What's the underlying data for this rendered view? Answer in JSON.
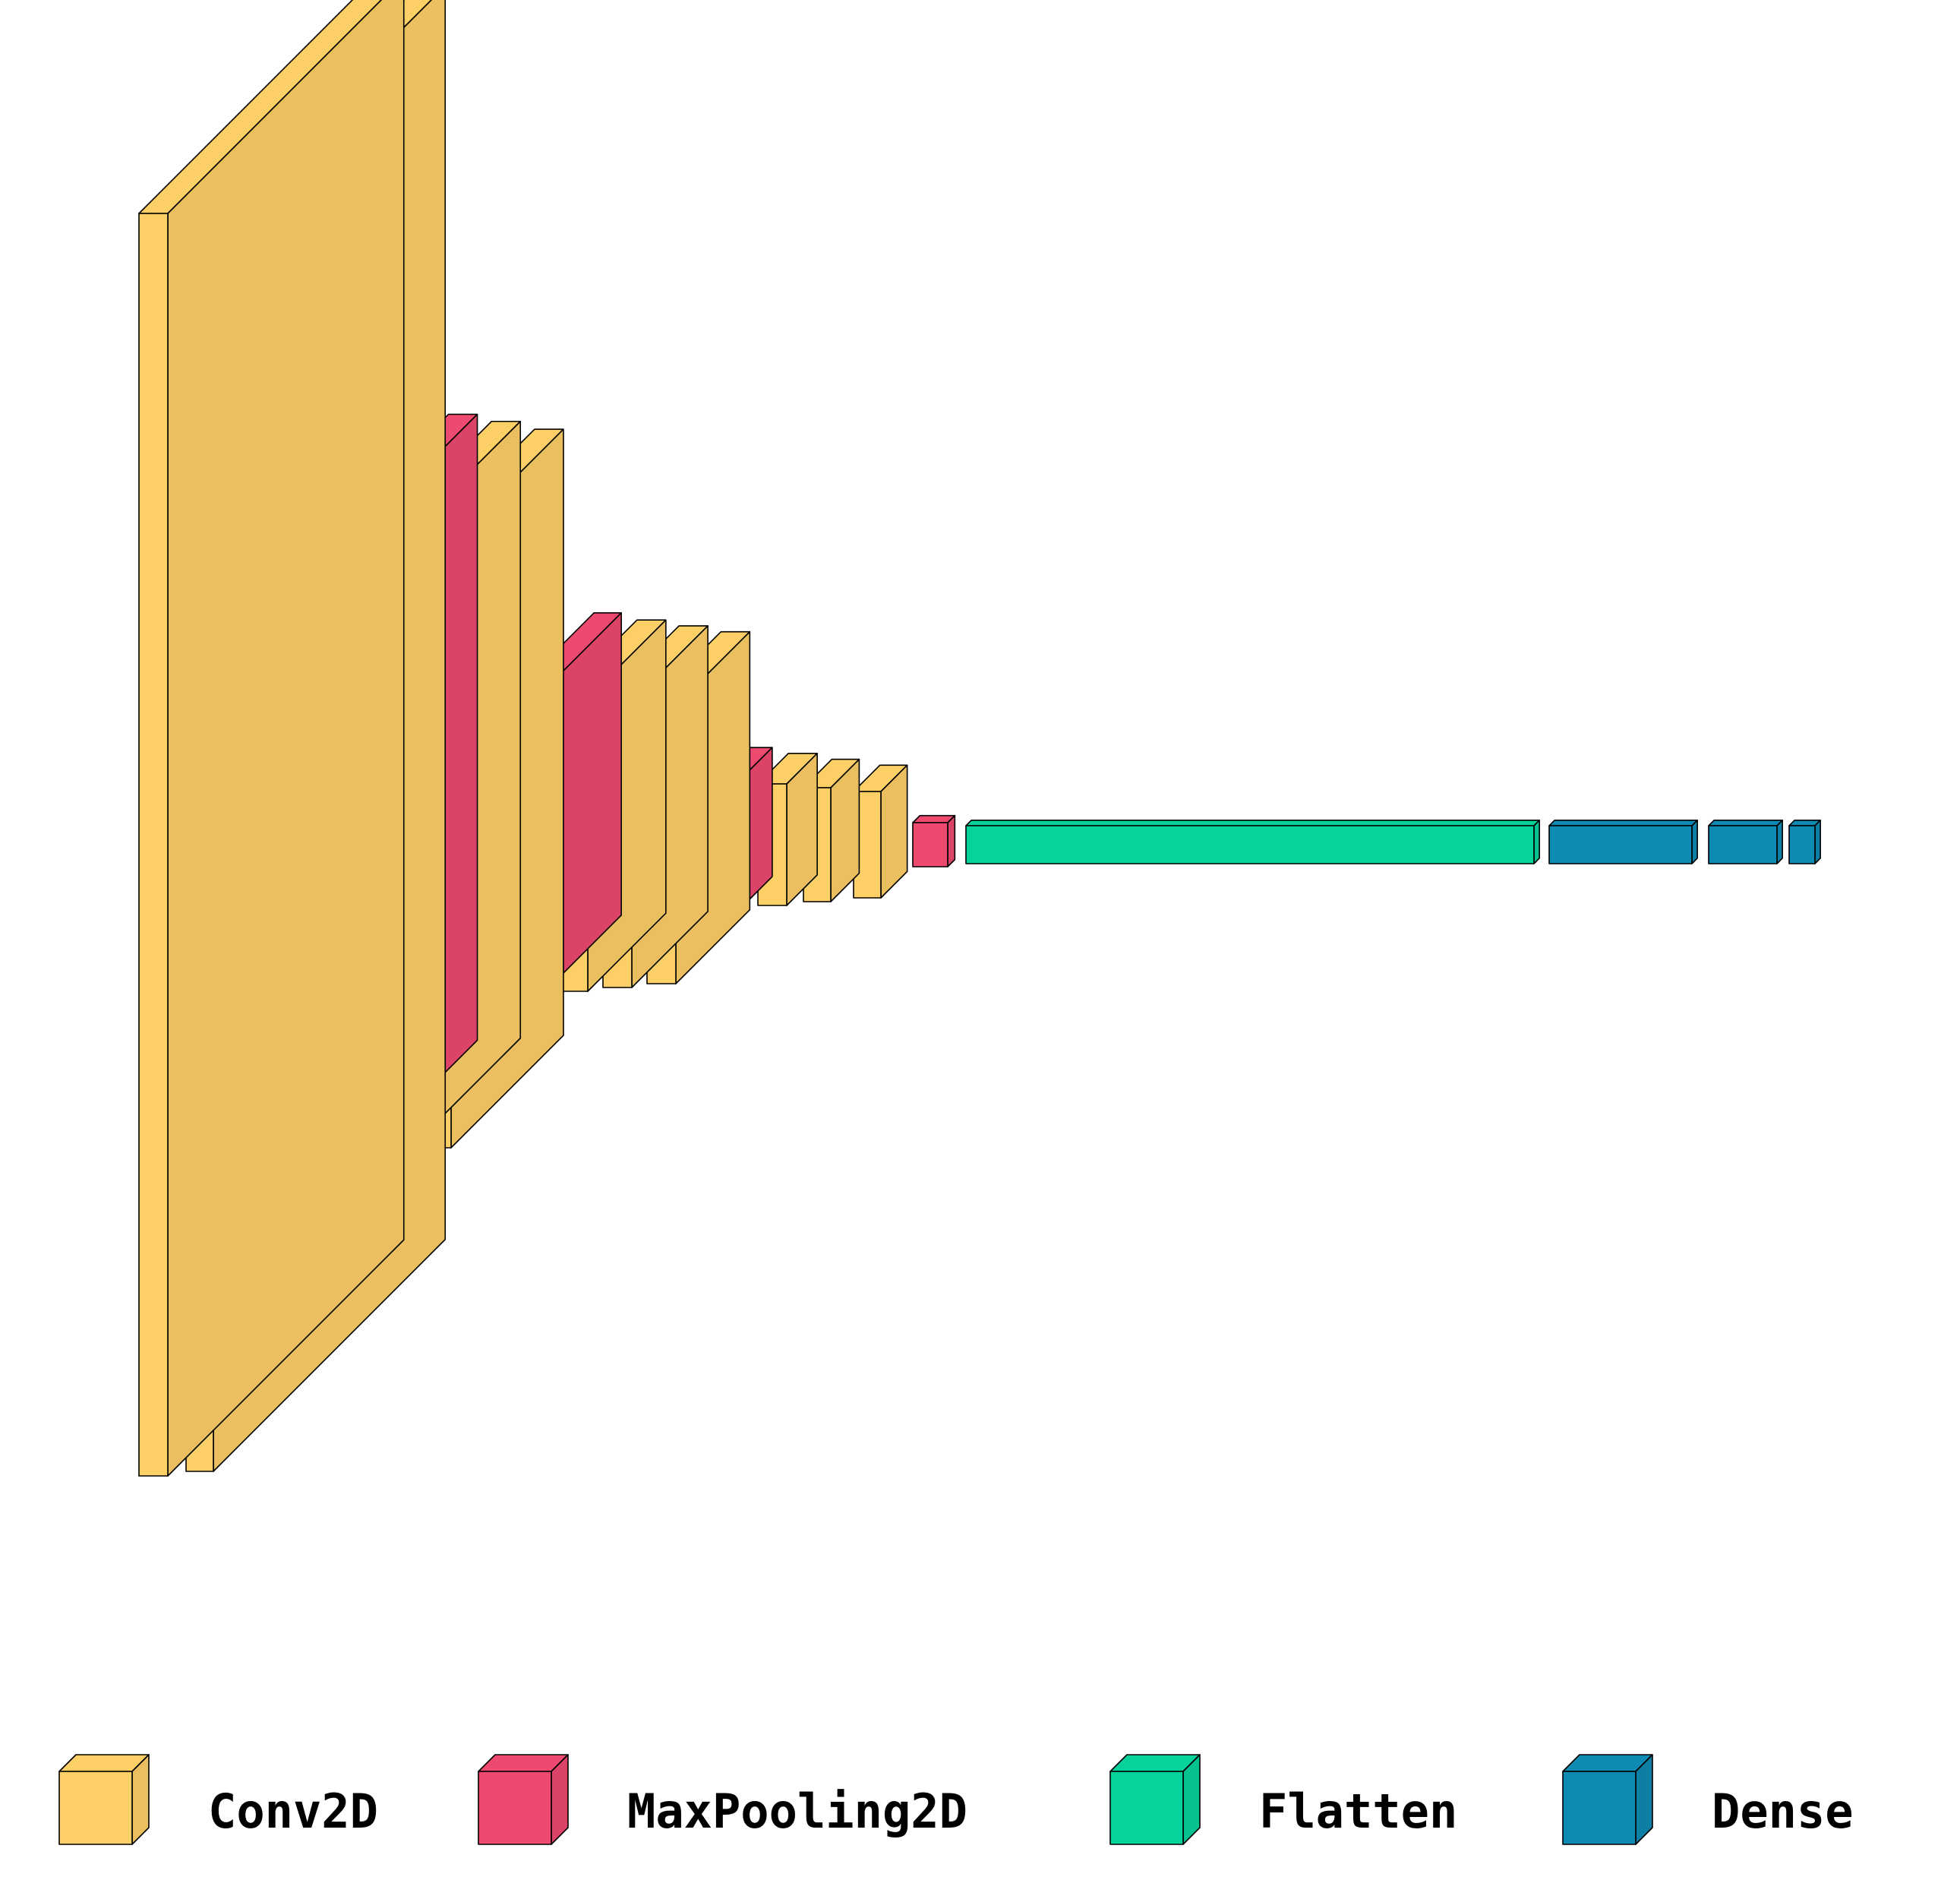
{
  "colors": {
    "conv2d": "#fdd067",
    "maxpooling2d": "#ee4a6f",
    "flatten": "#06d29c",
    "dense": "#0f8ab2",
    "outline": "#000000"
  },
  "layers": [
    {
      "type": "Conv2D",
      "color_key": "conv2d"
    },
    {
      "type": "Conv2D",
      "color_key": "conv2d"
    },
    {
      "type": "MaxPooling2D",
      "color_key": "maxpooling2d"
    },
    {
      "type": "Conv2D",
      "color_key": "conv2d"
    },
    {
      "type": "Conv2D",
      "color_key": "conv2d"
    },
    {
      "type": "MaxPooling2D",
      "color_key": "maxpooling2d"
    },
    {
      "type": "Conv2D",
      "color_key": "conv2d"
    },
    {
      "type": "Conv2D",
      "color_key": "conv2d"
    },
    {
      "type": "Conv2D",
      "color_key": "conv2d"
    },
    {
      "type": "MaxPooling2D",
      "color_key": "maxpooling2d"
    },
    {
      "type": "Conv2D",
      "color_key": "conv2d"
    },
    {
      "type": "Conv2D",
      "color_key": "conv2d"
    },
    {
      "type": "Conv2D",
      "color_key": "conv2d"
    },
    {
      "type": "MaxPooling2D",
      "color_key": "maxpooling2d"
    },
    {
      "type": "Flatten",
      "color_key": "flatten"
    },
    {
      "type": "Dense",
      "color_key": "dense"
    },
    {
      "type": "Dense",
      "color_key": "dense"
    },
    {
      "type": "Dense",
      "color_key": "dense"
    }
  ],
  "legend": [
    {
      "label": "Conv2D",
      "color_key": "conv2d"
    },
    {
      "label": "MaxPooling2D",
      "color_key": "maxpooling2d"
    },
    {
      "label": "Flatten",
      "color_key": "flatten"
    },
    {
      "label": "Dense",
      "color_key": "dense"
    }
  ]
}
